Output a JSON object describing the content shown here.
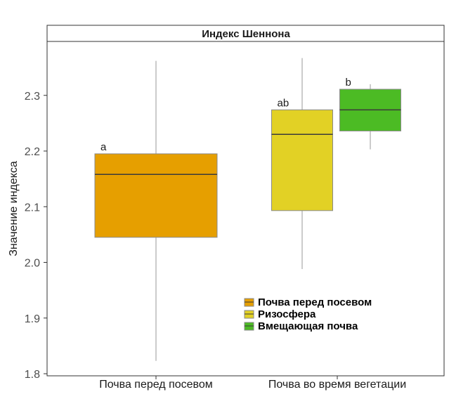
{
  "chart_data": {
    "type": "boxplot",
    "title": "Индекс Шеннона",
    "ylabel": "Значение индекса",
    "xlabel": "",
    "ylim": [
      1.8,
      2.39
    ],
    "yticks": [
      1.8,
      1.9,
      2.0,
      2.1,
      2.2,
      2.3
    ],
    "categories": [
      "Почва перед посевом",
      "Почва во время вегетации"
    ],
    "grid": false,
    "legend_position": "bottom-right",
    "series": [
      {
        "name": "Почва перед посевом",
        "color": "#E69F00",
        "category": 0,
        "min": 1.823,
        "q1": 2.045,
        "median": 2.158,
        "q3": 2.195,
        "max": 2.362,
        "label": "a"
      },
      {
        "name": "Ризосфера",
        "color": "#E2D125",
        "category": 1,
        "min": 1.988,
        "q1": 2.093,
        "median": 2.23,
        "q3": 2.274,
        "max": 2.367,
        "label": "ab"
      },
      {
        "name": "Вмещающая почва",
        "color": "#4CBB24",
        "category": 1,
        "min": 2.203,
        "q1": 2.236,
        "median": 2.274,
        "q3": 2.311,
        "max": 2.32,
        "label": "b"
      }
    ]
  }
}
